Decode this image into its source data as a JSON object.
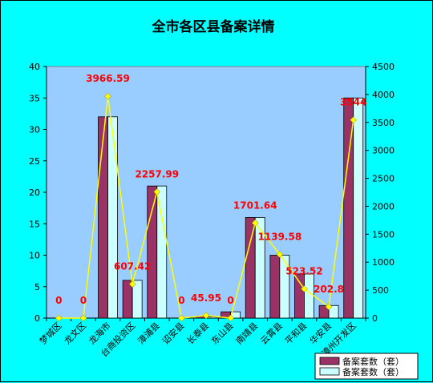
{
  "chart_data": {
    "type": "bar+line",
    "title": "全市各区县备案详情",
    "categories": [
      "梦城区",
      "龙文区",
      "龙海市",
      "台商投资区",
      "漳浦县",
      "诏安县",
      "长泰县",
      "东山县",
      "南靖县",
      "云霄县",
      "平和县",
      "华安县",
      "漳州开发区"
    ],
    "series": [
      {
        "name": "备案套数（套）",
        "type": "bar",
        "axis": "left",
        "color": "#993366",
        "values": [
          0,
          0,
          32,
          6,
          21,
          0,
          0.3,
          1,
          16,
          10,
          7,
          2,
          35
        ]
      },
      {
        "name": "备案套数（套）",
        "type": "bar",
        "axis": "left",
        "color": "#ccffff",
        "values": [
          0,
          0,
          32,
          6,
          21,
          0,
          0.2,
          1,
          16,
          10,
          7,
          2,
          35
        ]
      },
      {
        "type": "line",
        "axis": "right",
        "color": "#ffff00",
        "values": [
          0,
          0,
          3966.59,
          607.42,
          2257.99,
          0,
          45.95,
          0,
          1701.64,
          1139.58,
          523.52,
          202.8,
          3544
        ]
      }
    ],
    "data_labels": [
      "0",
      "0",
      "3966.59",
      "607.42",
      "2257.99",
      "0",
      "45.95",
      "0",
      "1701.64",
      "1139.58",
      "523.52",
      "202.8",
      "3544"
    ],
    "ylim": [
      0,
      40
    ],
    "y_ticks": [
      0,
      5,
      10,
      15,
      20,
      25,
      30,
      35,
      40
    ],
    "y2lim": [
      0,
      4500
    ],
    "y2_ticks": [
      0,
      500,
      1000,
      1500,
      2000,
      2500,
      3000,
      3500,
      4000,
      4500
    ],
    "grid": false,
    "legend_position": "bottom-right",
    "colors": {
      "background": "#00ffff",
      "plot": "#99ccff",
      "label": "#ff0000"
    }
  }
}
